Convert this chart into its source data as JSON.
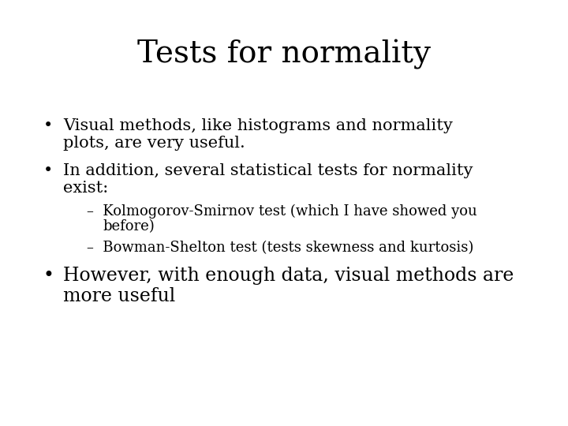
{
  "title": "Tests for normality",
  "title_fontsize": 28,
  "title_font": "DejaVu Serif",
  "background_color": "#ffffff",
  "text_color": "#000000",
  "bullet1_line1": "Visual methods, like histograms and normality",
  "bullet1_line2": "plots, are very useful.",
  "bullet2_line1": "In addition, several statistical tests for normality",
  "bullet2_line2": "exist:",
  "sub1_line1": "–  Kolmogorov-Smirnov test (which I have showed you",
  "sub1_line2": "before)",
  "sub2_line1": "–  Bowman-Shelton test (tests skewness and kurtosis)",
  "bullet3_line1": "However, with enough data, visual methods are",
  "bullet3_line2": "more useful",
  "body_fontsize": 15,
  "sub_fontsize": 13,
  "bullet3_fontsize": 17,
  "body_font": "DejaVu Serif"
}
